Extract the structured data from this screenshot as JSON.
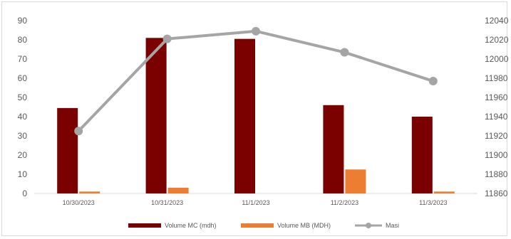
{
  "chart_data": {
    "type": "bar",
    "categories": [
      "10/30/2023",
      "10/31/2023",
      "11/1/2023",
      "11/2/2023",
      "11/3/2023"
    ],
    "series": [
      {
        "name": "Volume MC (mdh)",
        "type": "bar",
        "axis": "left",
        "color": "#7b0000",
        "values": [
          44.5,
          81,
          80.5,
          46,
          40
        ]
      },
      {
        "name": "Volume MB (MDH)",
        "type": "bar",
        "axis": "left",
        "color": "#ed7d31",
        "values": [
          1,
          3,
          0,
          12.5,
          1
        ]
      },
      {
        "name": "Masi",
        "type": "line",
        "axis": "right",
        "color": "#a5a5a5",
        "values": [
          11925,
          12021,
          12029,
          12007,
          11977
        ]
      }
    ],
    "y_left": {
      "min": 0,
      "max": 90,
      "step": 10,
      "ticks": [
        "0",
        "10",
        "20",
        "30",
        "40",
        "50",
        "60",
        "70",
        "80",
        "90"
      ]
    },
    "y_right": {
      "min": 11860,
      "max": 12040,
      "step": 20,
      "ticks": [
        "11860",
        "11880",
        "11900",
        "11920",
        "11940",
        "11960",
        "11980",
        "12000",
        "12020",
        "12040"
      ]
    },
    "legend_position": "bottom",
    "grid": false,
    "title": "",
    "xlabel": "",
    "ylabel": ""
  }
}
